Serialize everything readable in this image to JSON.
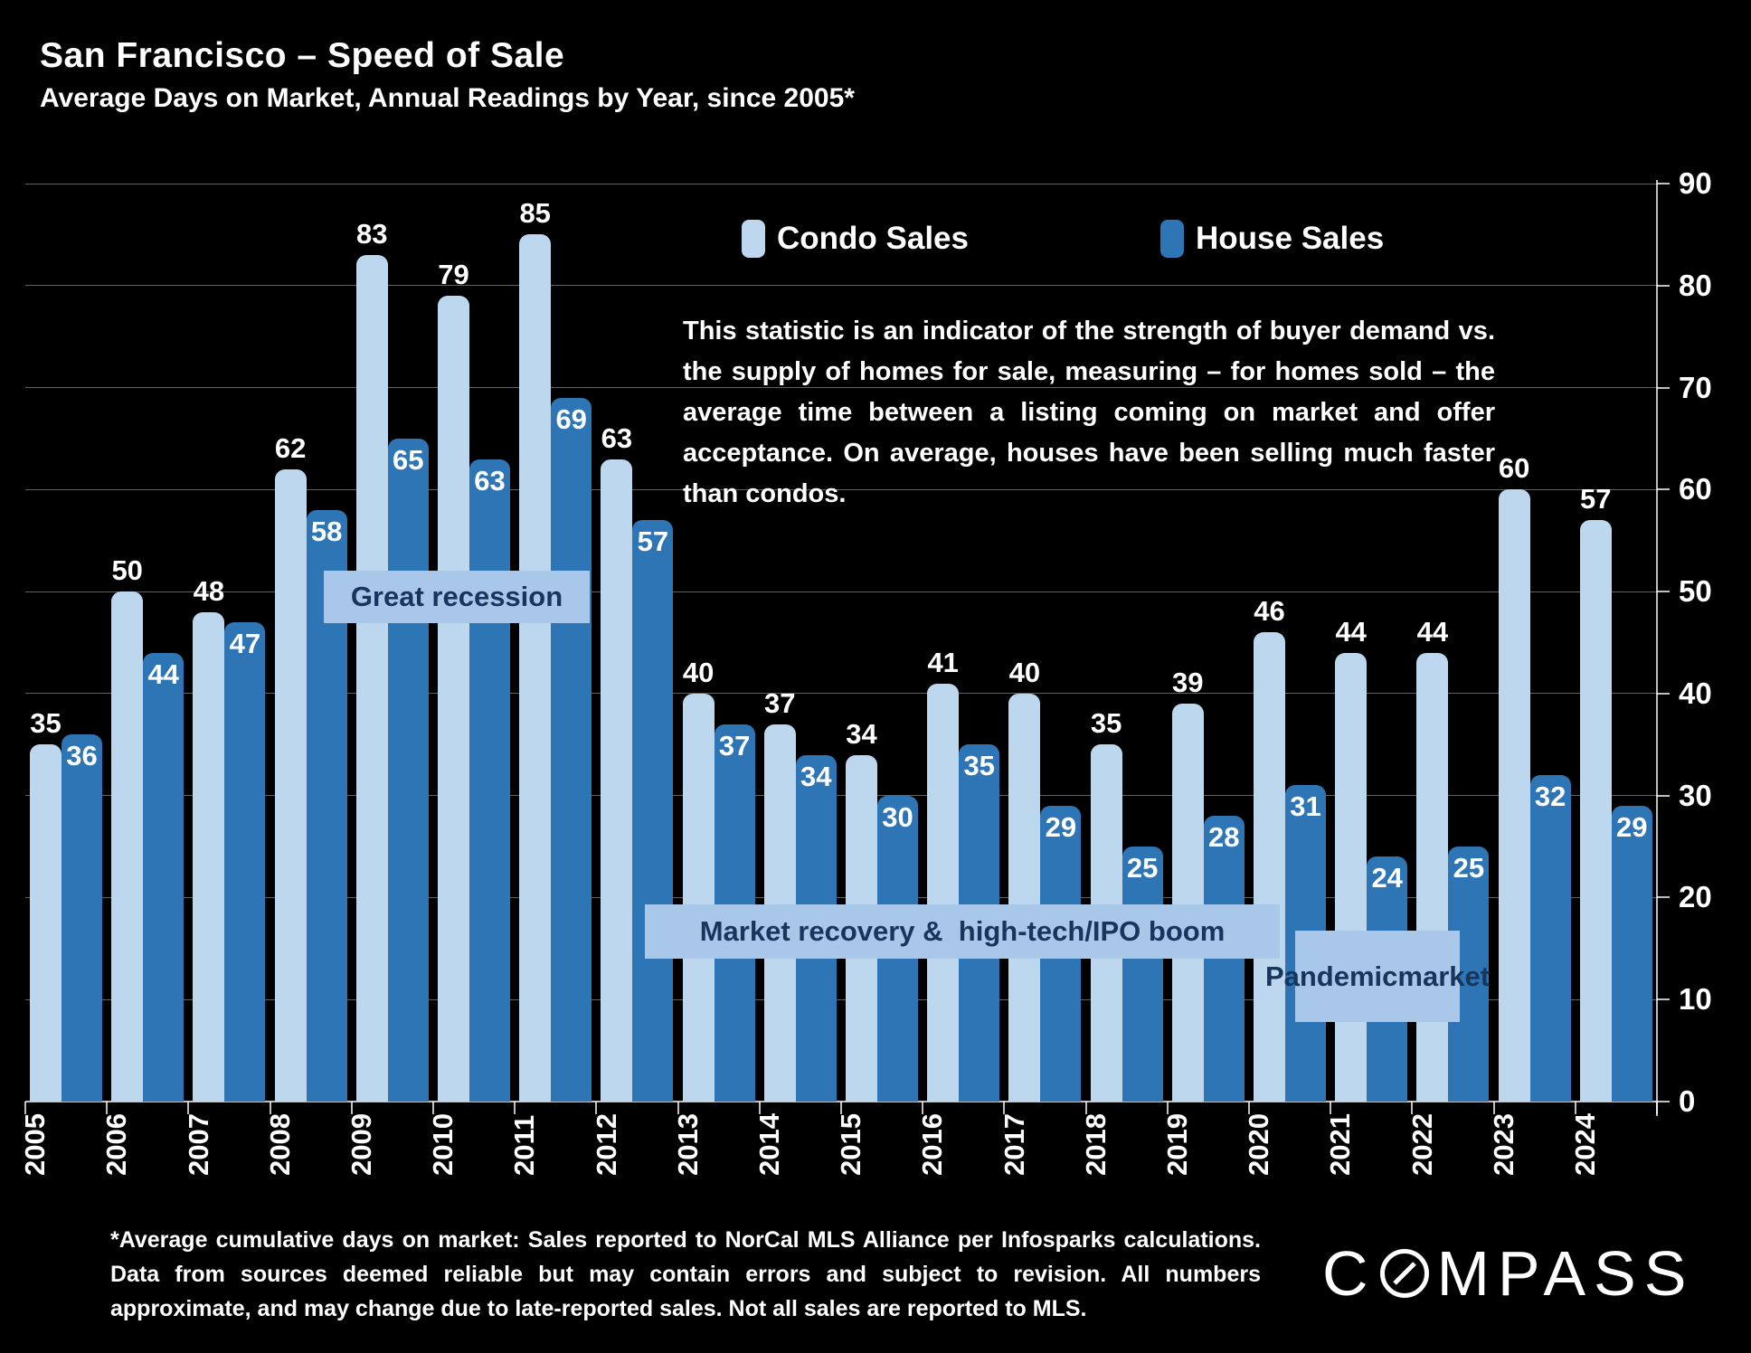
{
  "header": {
    "title": "San Francisco – Speed of Sale",
    "subtitle": "Average Days on Market, Annual Readings by Year, since 2005*"
  },
  "legend": [
    {
      "label": "Condo Sales",
      "color": "#bdd7ee"
    },
    {
      "label": "House Sales",
      "color": "#2e75b6"
    }
  ],
  "description": "This statistic is an indicator of the strength of buyer demand vs. the supply of homes for sale, measuring – for homes sold – the average time between a listing coming on market and offer acceptance. On average, houses have been selling much faster than condos.",
  "annotations": {
    "great_recession": "Great recession",
    "market_recovery": "Market recovery &  high-tech/IPO boom",
    "pandemic": "Pandemic\nmarket"
  },
  "footnote": "*Average cumulative days on market: Sales reported to NorCal MLS Alliance per Infosparks calculations. Data from sources deemed reliable but may contain errors and subject to revision. All numbers approximate, and may change due to late-reported sales. Not all sales are reported to MLS.",
  "logo": {
    "prefix": "C",
    "suffix": "MPASS",
    "o_icon": "compass-needle-o"
  },
  "colors": {
    "background": "#000000",
    "condo": "#bdd7ee",
    "house": "#2e75b6",
    "annotation_bg": "#a9c7e8",
    "annotation_text": "#17365d",
    "text": "#ffffff"
  },
  "chart_data": {
    "type": "bar",
    "title": "San Francisco – Speed of Sale",
    "subtitle": "Average Days on Market, Annual Readings by Year, since 2005*",
    "categories": [
      "2005",
      "2006",
      "2007",
      "2008",
      "2009",
      "2010",
      "2011",
      "2012",
      "2013",
      "2014",
      "2015",
      "2016",
      "2017",
      "2018",
      "2019",
      "2020",
      "2021",
      "2022",
      "2023",
      "2024"
    ],
    "series": [
      {
        "name": "Condo Sales",
        "color": "#bdd7ee",
        "values": [
          35,
          50,
          48,
          62,
          83,
          79,
          85,
          63,
          40,
          37,
          34,
          41,
          40,
          35,
          39,
          46,
          44,
          44,
          60,
          57
        ]
      },
      {
        "name": "House Sales",
        "color": "#2e75b6",
        "values": [
          36,
          44,
          47,
          58,
          65,
          63,
          69,
          57,
          37,
          34,
          30,
          35,
          29,
          25,
          28,
          31,
          24,
          25,
          32,
          29
        ]
      }
    ],
    "ylabel": "",
    "xlabel": "",
    "ylim": [
      0,
      90
    ],
    "yticks": [
      0,
      10,
      20,
      30,
      40,
      50,
      60,
      70,
      80,
      90
    ],
    "yaxis_side": "right",
    "grid": true,
    "legend_position": "top-center",
    "value_labels": "condo above bar, house inside bar top",
    "annotations": [
      "Great recession",
      "Market recovery &  high-tech/IPO boom",
      "Pandemic market"
    ]
  }
}
